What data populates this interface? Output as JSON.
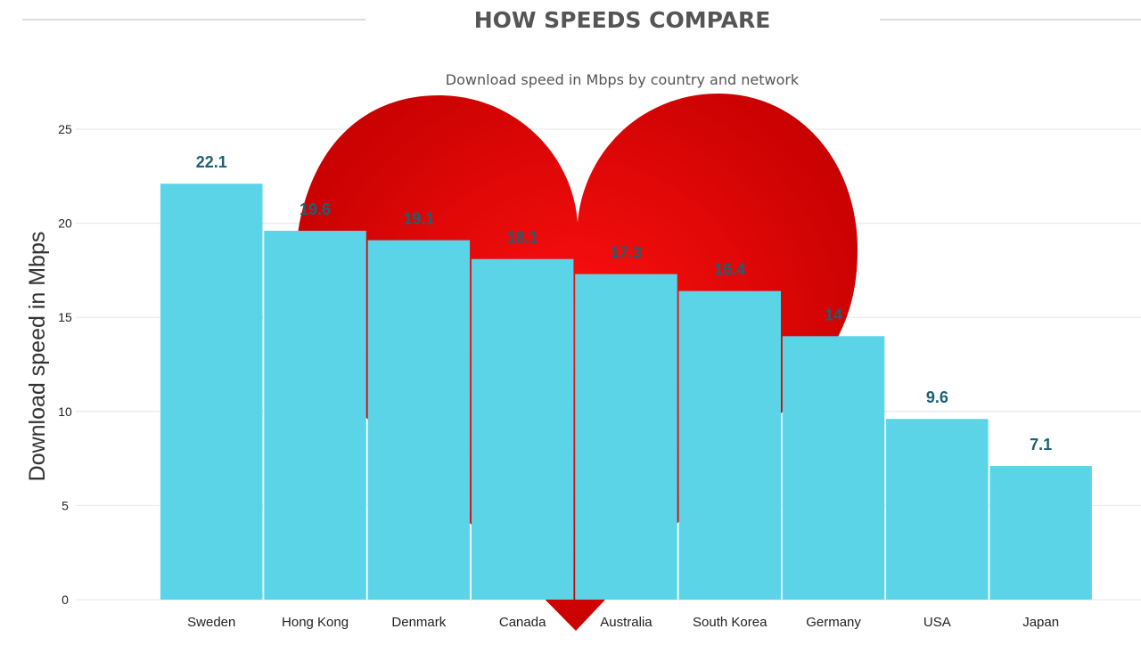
{
  "header": {
    "title": "HOW SPEEDS COMPARE"
  },
  "chart_data": {
    "type": "bar",
    "subtitle": "Download speed in Mbps by country and network",
    "ylabel": "Download speed in Mbps",
    "xlabel": "",
    "categories": [
      "Sweden",
      "Hong Kong",
      "Denmark",
      "Canada",
      "Australia",
      "South Korea",
      "Germany",
      "USA",
      "Japan"
    ],
    "values": [
      22.1,
      19.6,
      19.1,
      18.1,
      17.3,
      16.4,
      14,
      9.6,
      7.1
    ],
    "data_labels": [
      "22.1",
      "19.6",
      "19.1",
      "18.1",
      "17.3",
      "16.4",
      "14",
      "9.6",
      "7.1"
    ],
    "ylim": [
      0,
      25
    ],
    "yticks": [
      "0",
      "5",
      "10",
      "15",
      "20",
      "25"
    ],
    "grid": true,
    "legend": "none",
    "colors": {
      "bar": "#5ad4e6",
      "data_label": "#1b6173",
      "heart": "#e60000"
    },
    "background_decoration": "heart"
  }
}
